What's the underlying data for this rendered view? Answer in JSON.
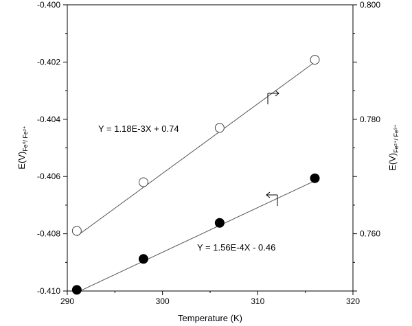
{
  "chart_data": {
    "type": "scatter",
    "xlabel": "Temperature (K)",
    "ylabel_left": {
      "base": "E(V)",
      "sub": "Fe⁰/ Fe²⁺"
    },
    "ylabel_right": {
      "base": "E(V)",
      "sub": "Fe²⁺/ Fe³⁺"
    },
    "xlim": [
      290,
      320
    ],
    "ylim_left": [
      -0.41,
      -0.4
    ],
    "ylim_right": [
      0.75,
      0.8
    ],
    "xticks": [
      290,
      300,
      310,
      320
    ],
    "xtick_labels": [
      "290",
      "300",
      "310",
      "320"
    ],
    "yticks_left": [
      -0.41,
      -0.408,
      -0.406,
      -0.404,
      -0.402,
      -0.4
    ],
    "ytick_labels_left": [
      "-0.410",
      "-0.408",
      "-0.406",
      "-0.404",
      "-0.402",
      "-0.400"
    ],
    "yticks_right": [
      0.76,
      0.78,
      0.8
    ],
    "ytick_labels_right": [
      "0.760",
      "0.780",
      "0.800"
    ],
    "grid": false,
    "series": [
      {
        "marker": "open-circle",
        "axis": "right",
        "x": [
          291,
          298,
          306,
          316
        ],
        "y": [
          0.7605,
          0.769,
          0.7785,
          0.7904
        ],
        "fit": {
          "x": [
            291,
            316
          ],
          "y": [
            0.7596,
            0.79
          ]
        },
        "equation": "Y = 1.18E-3X + 0.74",
        "arrow_direction": "right"
      },
      {
        "marker": "filled-circle",
        "axis": "left",
        "x": [
          291,
          298,
          306,
          316
        ],
        "y": [
          -0.40996,
          -0.40888,
          -0.40762,
          -0.40606
        ],
        "fit": {
          "x": [
            291,
            316
          ],
          "y": [
            -0.41005,
            -0.40615
          ]
        },
        "equation": "Y = 1.56E-4X - 0.46",
        "arrow_direction": "left"
      }
    ]
  }
}
